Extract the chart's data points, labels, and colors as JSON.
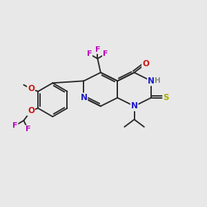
{
  "bg_color": "#e8e8e8",
  "bond_color": "#2a2a2a",
  "bond_width": 1.4,
  "atom_colors": {
    "C": "#2a2a2a",
    "N": "#1a1acc",
    "O": "#cc1a1a",
    "F": "#bb00bb",
    "S": "#aaaa00",
    "H": "#888888"
  },
  "font_size": 8.5,
  "fig_size": [
    3.0,
    3.0
  ],
  "dpi": 100
}
